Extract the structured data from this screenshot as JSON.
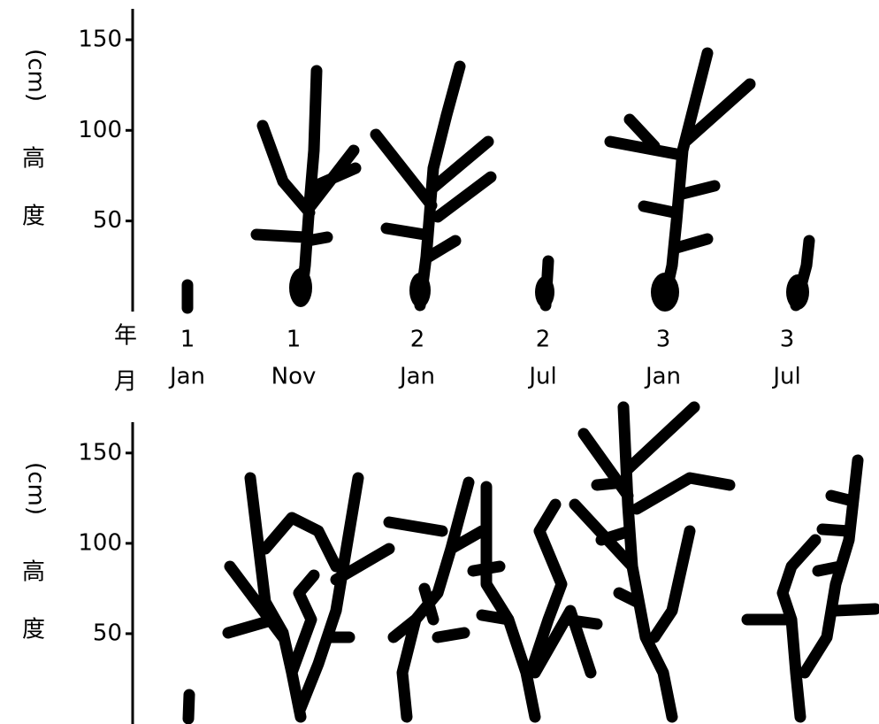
{
  "panels": [
    {
      "y_unit": "(cm)",
      "y_label_1": "高",
      "y_label_2": "度",
      "ylim": [
        0,
        170
      ],
      "yticks": [
        50,
        100,
        150
      ]
    },
    {
      "y_unit": "(cm)",
      "y_label_1": "高",
      "y_label_2": "度",
      "ylim": [
        0,
        170
      ],
      "yticks": [
        50,
        100,
        150
      ]
    }
  ],
  "x_axis": {
    "year_label": "年",
    "month_label": "月",
    "years": [
      "1",
      "1",
      "2",
      "2",
      "3",
      "3"
    ],
    "months": [
      "Jan",
      "Nov",
      "Jan",
      "Jul",
      "Jan",
      "Jul"
    ]
  }
}
